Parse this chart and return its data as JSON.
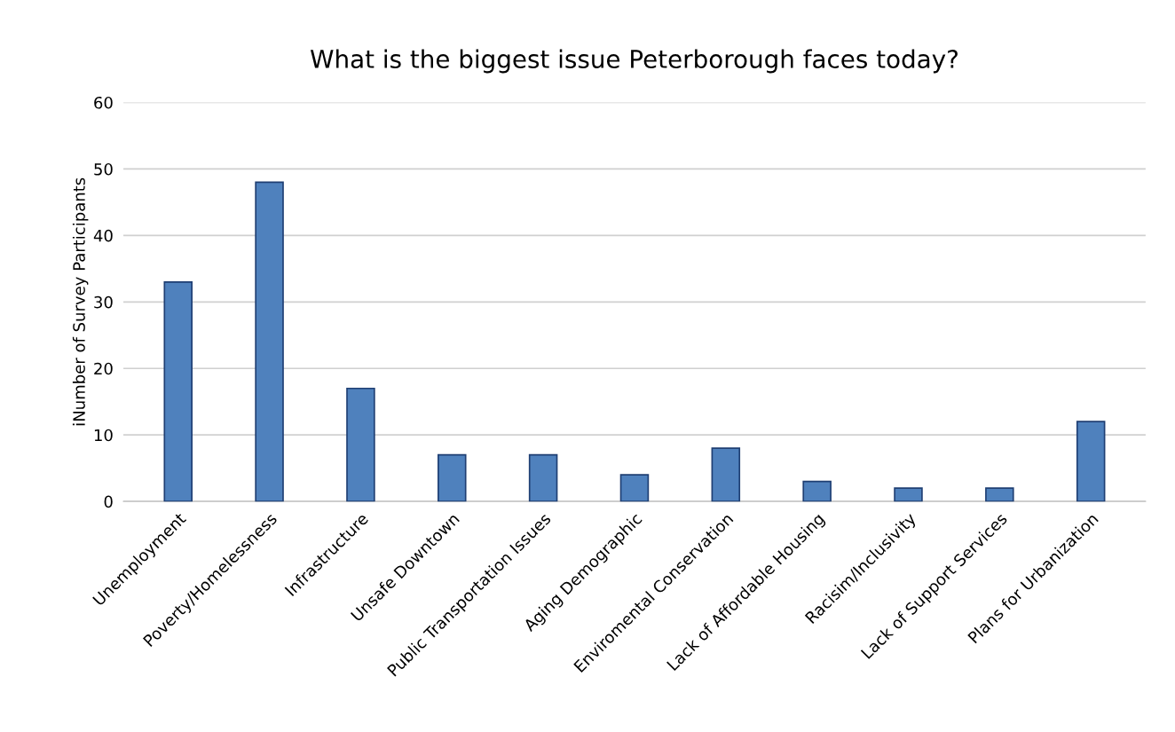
{
  "chart_data": {
    "type": "bar",
    "title": "What is the biggest issue Peterborough faces today?",
    "ylabel": "iNumber of Survey Participants",
    "categories": [
      "Unemployment",
      "Poverty/Homelessness",
      "Infrastructure",
      "Unsafe Downtown",
      "Public Transportation Issues",
      "Aging Demographic",
      "Enviromental Conservation",
      "Lack of Affordable Housing",
      "Racisim/Inclusivity",
      "Lack of Support Services",
      "Plans for Urbanization"
    ],
    "values": [
      33,
      48,
      17,
      7,
      7,
      4,
      8,
      3,
      2,
      2,
      12
    ],
    "color": "#4f81bd",
    "ylim": [
      0,
      60
    ],
    "yticks": [
      0,
      10,
      20,
      30,
      40,
      50,
      60
    ],
    "grid": "y",
    "legend": false
  }
}
